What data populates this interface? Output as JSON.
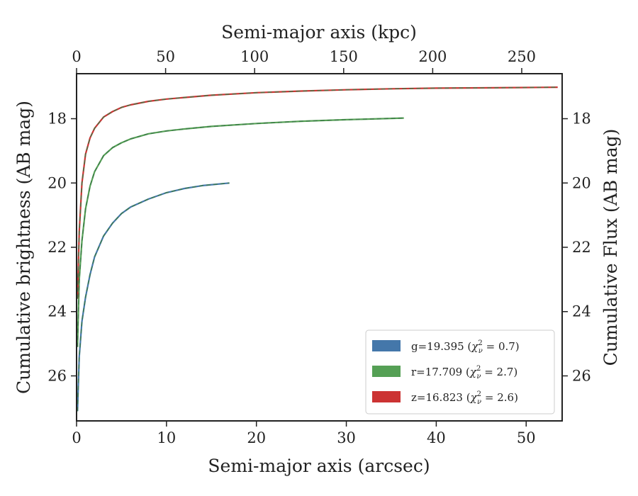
{
  "chart_data": {
    "type": "line",
    "xlabel": "Semi-major axis (arcsec)",
    "x2label": "Semi-major axis (kpc)",
    "ylabel": "Cumulative brightness (AB mag)",
    "y2label": "Cumulative Flux (AB mag)",
    "xlim": [
      0,
      54
    ],
    "x2lim": [
      0,
      272.7
    ],
    "ylim": [
      27.4,
      16.6
    ],
    "y_inverted": true,
    "xticks": [
      "0",
      "10",
      "20",
      "30",
      "40",
      "50"
    ],
    "x2ticks": [
      "0",
      "50",
      "100",
      "150",
      "200",
      "250"
    ],
    "yticks": [
      "18",
      "20",
      "22",
      "24",
      "26"
    ],
    "legend_position": "lower-right",
    "series": [
      {
        "name": "g=19.395 (χ²ν = 0.7)",
        "label_main": "g=19.395 (",
        "label_end": ")",
        "chi2": "0.7",
        "color": "#4477aa",
        "x": [
          0.1,
          0.3,
          0.6,
          1,
          1.5,
          2,
          3,
          4,
          5,
          6,
          8,
          10,
          12,
          14,
          17
        ],
        "y": [
          27.1,
          25.4,
          24.3,
          23.55,
          22.85,
          22.3,
          21.65,
          21.25,
          20.95,
          20.75,
          20.5,
          20.3,
          20.17,
          20.08,
          20.0
        ]
      },
      {
        "name": "r=17.709 (χ²ν = 2.7)",
        "label_main": "r=17.709 (",
        "label_end": ")",
        "chi2": "2.7",
        "color": "#55a055",
        "x": [
          0.1,
          0.3,
          0.6,
          1,
          1.5,
          2,
          3,
          4,
          5,
          6,
          8,
          10,
          12,
          15,
          20,
          25,
          30,
          36.4
        ],
        "y": [
          25.1,
          23.0,
          21.8,
          20.8,
          20.1,
          19.65,
          19.15,
          18.9,
          18.75,
          18.63,
          18.47,
          18.38,
          18.32,
          18.24,
          18.15,
          18.08,
          18.03,
          17.98
        ]
      },
      {
        "name": "z=16.823 (χ²ν = 2.6)",
        "label_main": "z=16.823 (",
        "label_end": ")",
        "chi2": "2.6",
        "color": "#cc3333",
        "x": [
          0.1,
          0.3,
          0.6,
          1,
          1.5,
          2,
          3,
          4,
          5,
          6,
          8,
          10,
          12,
          15,
          20,
          25,
          30,
          35,
          40,
          45,
          50,
          53.5
        ],
        "y": [
          23.6,
          21.5,
          20.0,
          19.1,
          18.6,
          18.3,
          17.95,
          17.78,
          17.65,
          17.57,
          17.46,
          17.39,
          17.34,
          17.27,
          17.19,
          17.14,
          17.1,
          17.07,
          17.05,
          17.04,
          17.03,
          17.02
        ]
      }
    ]
  }
}
